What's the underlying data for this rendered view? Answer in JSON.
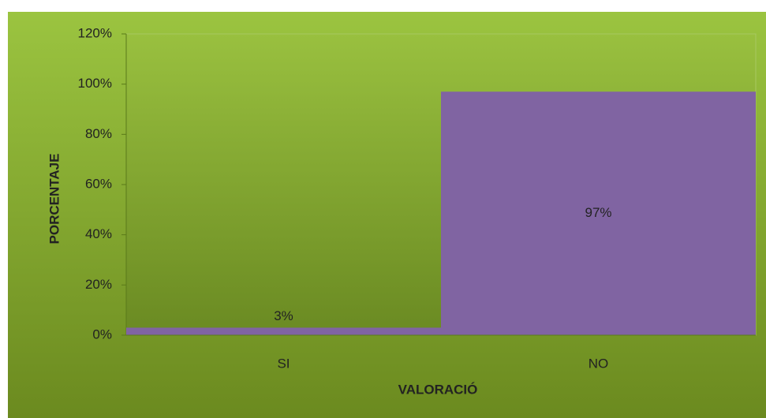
{
  "chart_data": {
    "type": "bar",
    "x_label": "VALORACIÓ",
    "y_label": "PORCENTAJE",
    "categories": [
      "SI",
      "NO"
    ],
    "values": [
      3,
      97
    ],
    "value_labels": [
      "3%",
      "97%"
    ],
    "color": "#8064a2",
    "ylim": [
      0,
      120
    ],
    "yticks": [
      {
        "value": 0,
        "label": "0%"
      },
      {
        "value": 20,
        "label": "20%"
      },
      {
        "value": 40,
        "label": "40%"
      },
      {
        "value": 60,
        "label": "60%"
      },
      {
        "value": 80,
        "label": "80%"
      },
      {
        "value": 100,
        "label": "100%"
      },
      {
        "value": 120,
        "label": "120%"
      }
    ],
    "grid": false
  }
}
